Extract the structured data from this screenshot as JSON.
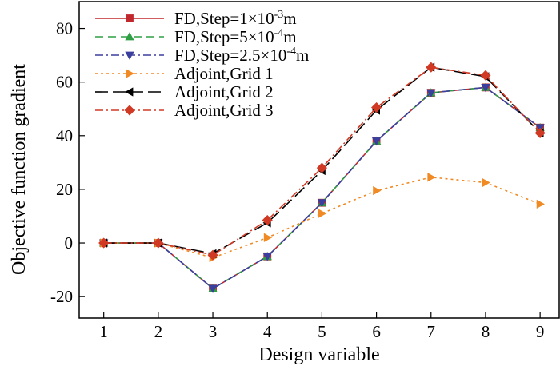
{
  "chart_data": {
    "type": "line",
    "title": "",
    "xlabel": "Design variable",
    "ylabel": "Objective function gradient",
    "xlim": [
      0.55,
      9.35
    ],
    "ylim": [
      -28,
      90
    ],
    "xticks": [
      1,
      2,
      3,
      4,
      5,
      6,
      7,
      8,
      9
    ],
    "yticks": [
      -20,
      0,
      20,
      40,
      60,
      80
    ],
    "x": [
      1,
      2,
      3,
      4,
      5,
      6,
      7,
      8,
      9
    ],
    "legend_position": "top-left",
    "series": [
      {
        "name": "FD,Step=1×10⁻³m",
        "legend": {
          "prefix": "FD,Step=1×10",
          "sup": "-3",
          "suffix": "m"
        },
        "color": "#c0282d",
        "dash": "solid",
        "marker": "square",
        "values": [
          0,
          0,
          -17,
          -5,
          15,
          38,
          56,
          58,
          43
        ]
      },
      {
        "name": "FD,Step=5×10⁻⁴m",
        "legend": {
          "prefix": "FD,Step=5×10",
          "sup": "-4",
          "suffix": "m"
        },
        "color": "#2ea043",
        "dash": "dash",
        "marker": "triangle-up",
        "values": [
          0,
          0,
          -17,
          -5,
          15,
          38,
          56,
          58,
          43
        ]
      },
      {
        "name": "FD,Step=2.5×10⁻⁴m",
        "legend": {
          "prefix": "FD,Step=2.5×10",
          "sup": "-4",
          "suffix": "m"
        },
        "color": "#3b3f9e",
        "dash": "dashdot",
        "marker": "triangle-down",
        "values": [
          0,
          0,
          -17,
          -5,
          15,
          38,
          56,
          58,
          43
        ]
      },
      {
        "name": "Adjoint,Grid 1",
        "legend": {
          "prefix": "Adjoint,Grid 1",
          "sup": "",
          "suffix": ""
        },
        "color": "#f08a24",
        "dash": "dot",
        "marker": "triangle-right",
        "values": [
          0,
          0,
          -5.5,
          2,
          11,
          19.5,
          24.5,
          22.5,
          14.5
        ]
      },
      {
        "name": "Adjoint,Grid 2",
        "legend": {
          "prefix": "Adjoint,Grid 2",
          "sup": "",
          "suffix": ""
        },
        "color": "#000000",
        "dash": "longdash",
        "marker": "triangle-left",
        "values": [
          0,
          0,
          -4,
          7.5,
          27,
          49.5,
          65.5,
          62,
          41
        ]
      },
      {
        "name": "Adjoint,Grid 3",
        "legend": {
          "prefix": "Adjoint,Grid 3",
          "sup": "",
          "suffix": ""
        },
        "color": "#d03a25",
        "dash": "dashdot",
        "marker": "diamond",
        "values": [
          0,
          0,
          -4.5,
          8.5,
          28,
          50.5,
          65.5,
          62.5,
          41
        ]
      }
    ]
  }
}
